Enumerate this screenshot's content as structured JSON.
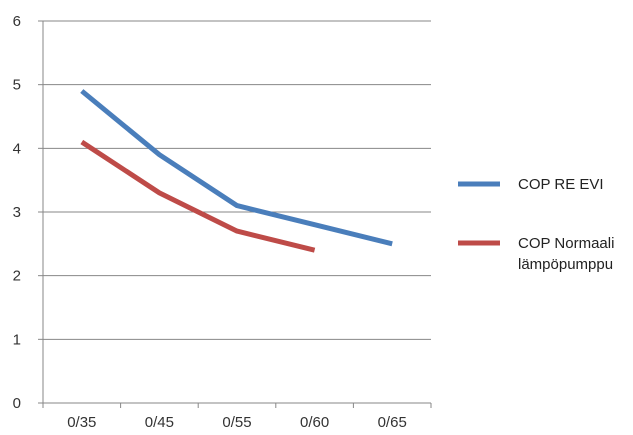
{
  "chart_data": {
    "type": "line",
    "categories": [
      "0/35",
      "0/45",
      "0/55",
      "0/60",
      "0/65"
    ],
    "series": [
      {
        "name": "COP RE EVI",
        "name_lines": [
          "COP RE EVI"
        ],
        "color": "#4a7ebb",
        "values": [
          4.9,
          3.9,
          3.1,
          2.8,
          2.5
        ]
      },
      {
        "name": "COP Normaali lämpöpumppu",
        "name_lines": [
          "COP Normaali",
          "lämpöpumppu"
        ],
        "color": "#be4b48",
        "values": [
          4.1,
          3.3,
          2.7,
          2.4,
          null
        ]
      }
    ],
    "y_ticks": [
      "0",
      "1",
      "2",
      "3",
      "4",
      "5",
      "6"
    ],
    "ylim": [
      0,
      6
    ],
    "grid": true,
    "legend_position": "right",
    "title": "",
    "xlabel": "",
    "ylabel": ""
  }
}
